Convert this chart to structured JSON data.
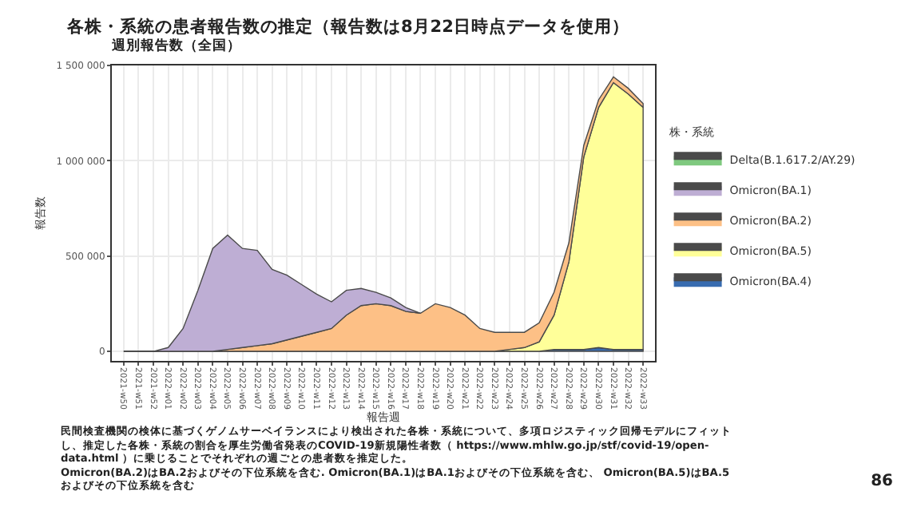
{
  "chart_data": {
    "type": "area",
    "title": "各株・系統の患者報告数の推定（報告数は8月22日時点データを使用）",
    "subtitle": "週別報告数（全国）",
    "xlabel": "報告週",
    "ylabel": "報告数",
    "legend_title": "株・系統",
    "categories": [
      "2021-w50",
      "2021-w51",
      "2021-w52",
      "2022-w01",
      "2022-w02",
      "2022-w03",
      "2022-w04",
      "2022-w05",
      "2022-w06",
      "2022-w07",
      "2022-w08",
      "2022-w09",
      "2022-w10",
      "2022-w11",
      "2022-w12",
      "2022-w13",
      "2022-w14",
      "2022-w15",
      "2022-w16",
      "2022-w17",
      "2022-w18",
      "2022-w19",
      "2022-w20",
      "2022-w21",
      "2022-w22",
      "2022-w23",
      "2022-w24",
      "2022-w25",
      "2022-w26",
      "2022-w27",
      "2022-w28",
      "2022-w29",
      "2022-w30",
      "2022-w31",
      "2022-w32",
      "2022-w33"
    ],
    "stacked": true,
    "series": [
      {
        "name": "Omicron(BA.4)",
        "color": "#386cb0",
        "values": [
          0,
          0,
          0,
          0,
          0,
          0,
          0,
          0,
          0,
          0,
          0,
          0,
          0,
          0,
          0,
          0,
          0,
          0,
          0,
          0,
          0,
          0,
          0,
          0,
          0,
          0,
          0,
          0,
          0,
          10000,
          10000,
          10000,
          20000,
          10000,
          10000,
          10000
        ]
      },
      {
        "name": "Omicron(BA.5)",
        "color": "#ffff99",
        "values": [
          0,
          0,
          0,
          0,
          0,
          0,
          0,
          0,
          0,
          0,
          0,
          0,
          0,
          0,
          0,
          0,
          0,
          0,
          0,
          0,
          0,
          0,
          0,
          0,
          0,
          0,
          10000,
          20000,
          50000,
          180000,
          460000,
          1010000,
          1260000,
          1400000,
          1340000,
          1270000
        ]
      },
      {
        "name": "Omicron(BA.2)",
        "color": "#fdc086",
        "values": [
          0,
          0,
          0,
          0,
          0,
          0,
          0,
          10000,
          20000,
          30000,
          40000,
          60000,
          80000,
          100000,
          120000,
          190000,
          240000,
          250000,
          240000,
          210000,
          200000,
          250000,
          230000,
          190000,
          120000,
          100000,
          90000,
          80000,
          100000,
          120000,
          100000,
          60000,
          40000,
          30000,
          30000,
          20000
        ]
      },
      {
        "name": "Omicron(BA.1)",
        "color": "#beaed4",
        "values": [
          null,
          null,
          0,
          20000,
          120000,
          320000,
          540000,
          600000,
          520000,
          500000,
          390000,
          340000,
          270000,
          200000,
          140000,
          130000,
          90000,
          60000,
          40000,
          20000,
          0,
          null,
          null,
          null,
          null,
          null,
          null,
          null,
          null,
          null,
          null,
          null,
          null,
          null,
          null,
          null
        ]
      },
      {
        "name": "Delta(B.1.617.2/AY.29)",
        "color": "#7fc97f",
        "values": [
          null,
          null,
          null,
          null,
          null,
          null,
          null,
          null,
          null,
          null,
          null,
          null,
          null,
          null,
          null,
          null,
          null,
          null,
          null,
          null,
          null,
          null,
          null,
          null,
          null,
          null,
          null,
          null,
          null,
          null,
          null,
          null,
          null,
          null,
          null,
          null
        ]
      }
    ],
    "ylim": [
      -50000,
      1500000
    ],
    "yticks": [
      0,
      {
        "value": 500000,
        "label": "500 000"
      },
      {
        "value": 1000000,
        "label": "1 000 000"
      },
      {
        "value": 1500000,
        "label": "1 500 000"
      }
    ],
    "grid": true,
    "legend": "right",
    "annotations": [
      "民間検査機関の検体に基づくゲノムサーベイランスにより検出された各株・系統について、多項ロジスティック回帰モデルにフィットし、推定した各株・系統の割合を厚生労働省発表のCOVID-19新規陽性者数（ https://www.mhlw.go.jp/stf/covid-19/open-data.html ）に乗じることでそれぞれの週ごとの患者数を推定した。\nOmicron(BA.2)はBA.2およびその下位系統を含む. Omicron(BA.1)はBA.1およびその下位系統を含む、 Omicron(BA.5)はBA.5およびその下位系統を含む",
      "86"
    ]
  }
}
